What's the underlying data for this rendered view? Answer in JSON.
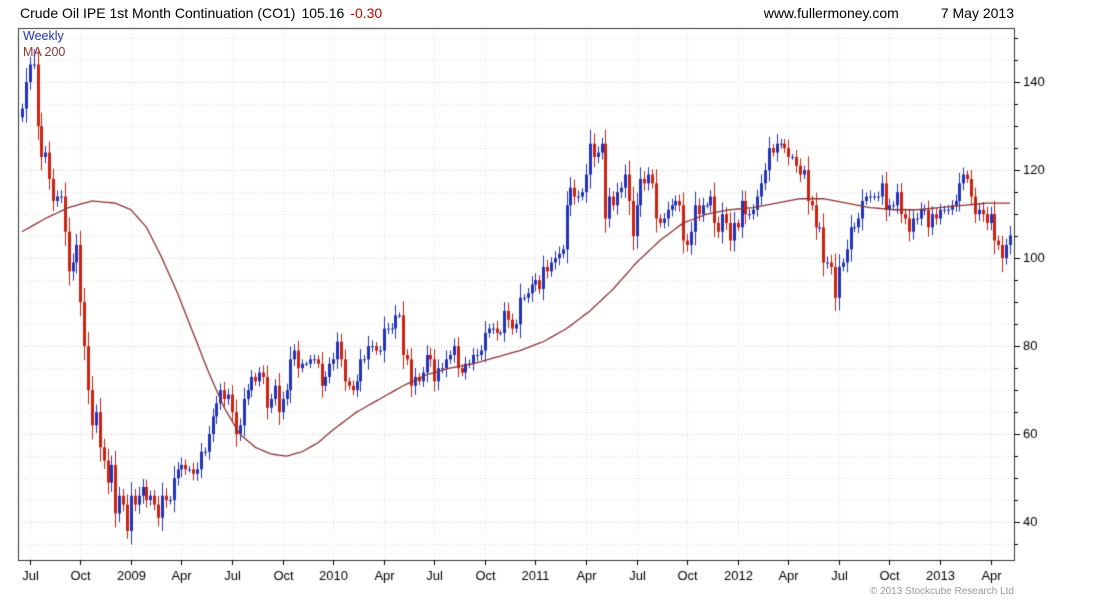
{
  "header": {
    "title": "Crude Oil IPE 1st Month Continuation (CO1)",
    "last_price": "105.16",
    "change": "-0.30",
    "website": "www.fullermoney.com",
    "date": "7 May 2013"
  },
  "legend": {
    "series_label": "Weekly",
    "ma_label": "MA 200"
  },
  "footer": {
    "copyright": "© 2013 Stockcube Research Ltd"
  },
  "colors": {
    "up": "#2233bb",
    "down": "#cc2211",
    "ma": "#8b3434",
    "grid_minor": "#e2e2e2",
    "grid_major": "#cfcfcf",
    "border": "#333333",
    "axis_text": "#000000"
  },
  "chart_data": {
    "type": "candlestick",
    "title": "Crude Oil IPE 1st Month Continuation (CO1)",
    "frequency_label": "Weekly",
    "ma_label": "MA 200",
    "last_close": 105.16,
    "change": -0.3,
    "y_ticks": [
      40,
      60,
      80,
      100,
      120,
      140
    ],
    "y_minor_step": 5,
    "y_range": [
      31.4,
      152.3
    ],
    "first_open": 132,
    "x_ticks": [
      {
        "pos": 2,
        "label": "Jul"
      },
      {
        "pos": 15,
        "label": "Oct"
      },
      {
        "pos": 28,
        "label": "2009"
      },
      {
        "pos": 41,
        "label": "Apr"
      },
      {
        "pos": 54,
        "label": "Jul"
      },
      {
        "pos": 67,
        "label": "Oct"
      },
      {
        "pos": 80,
        "label": "2010"
      },
      {
        "pos": 93,
        "label": "Apr"
      },
      {
        "pos": 106,
        "label": "Jul"
      },
      {
        "pos": 119,
        "label": "Oct"
      },
      {
        "pos": 132,
        "label": "2011"
      },
      {
        "pos": 145,
        "label": "Apr"
      },
      {
        "pos": 158,
        "label": "Jul"
      },
      {
        "pos": 171,
        "label": "Oct"
      },
      {
        "pos": 184,
        "label": "2012"
      },
      {
        "pos": 197,
        "label": "Apr"
      },
      {
        "pos": 210,
        "label": "Jul"
      },
      {
        "pos": 223,
        "label": "Oct"
      },
      {
        "pos": 236,
        "label": "2013"
      },
      {
        "pos": 249,
        "label": "Apr"
      }
    ],
    "weekly_close": [
      134,
      140,
      144,
      144,
      130,
      123,
      124,
      118,
      113,
      114,
      114,
      106,
      97,
      99,
      103,
      90,
      80,
      70,
      62,
      65,
      57,
      54,
      49,
      53,
      42,
      46,
      44,
      38,
      46,
      44,
      46,
      48,
      45,
      46,
      44,
      41,
      46,
      45,
      45,
      50,
      52,
      53,
      52,
      52,
      51,
      52,
      56,
      56,
      60,
      64,
      67,
      70,
      68,
      69,
      65,
      60,
      62,
      68,
      70,
      73,
      72,
      74,
      73,
      66,
      68,
      71,
      65,
      68,
      70,
      77,
      79,
      75,
      76,
      76,
      77,
      77,
      76,
      71,
      73,
      76,
      77,
      81,
      77,
      72,
      71,
      70,
      72,
      77,
      77,
      80,
      80,
      79,
      79,
      84,
      84,
      84,
      87,
      87,
      78,
      77,
      71,
      73,
      72,
      74,
      78,
      77,
      72,
      75,
      75,
      77,
      78,
      80,
      75,
      74,
      76,
      76,
      78,
      78,
      79,
      83,
      84,
      84,
      83,
      83,
      88,
      86,
      84,
      85,
      91,
      91,
      92,
      94,
      95,
      93,
      98,
      97,
      99,
      100,
      101,
      102,
      112,
      116,
      114,
      114,
      115,
      119,
      126,
      123,
      124,
      126,
      109,
      114,
      112,
      115,
      116,
      119,
      113,
      105,
      112,
      118,
      117,
      119,
      117,
      109,
      108,
      109,
      111,
      112,
      113,
      112,
      104,
      103,
      106,
      112,
      110,
      112,
      112,
      114,
      108,
      106,
      110,
      108,
      104,
      108,
      107,
      113,
      110,
      110,
      111,
      114,
      117,
      120,
      125,
      124,
      126,
      126,
      125,
      123,
      123,
      121,
      119,
      120,
      113,
      112,
      107,
      107,
      99,
      99,
      98,
      91,
      98,
      99,
      102,
      107,
      107,
      109,
      113,
      114,
      114,
      114,
      114,
      117,
      111,
      112,
      112,
      115,
      110,
      109,
      106,
      109,
      109,
      111,
      111,
      107,
      110,
      109,
      111,
      111,
      111,
      112,
      113,
      117,
      119,
      118,
      114,
      110,
      111,
      110,
      108,
      110,
      104,
      103,
      100,
      103,
      105.16
    ],
    "wick_overrides": {
      "3": {
        "h": 147.5
      },
      "27": {
        "l": 36.2
      },
      "149": {
        "h": 127.3
      },
      "194": {
        "h": 128.2
      },
      "252": {
        "l": 96.8
      }
    },
    "ma200": {
      "anchors": [
        [
          0,
          106
        ],
        [
          6,
          109
        ],
        [
          12,
          111.5
        ],
        [
          18,
          113
        ],
        [
          24,
          112.5
        ],
        [
          28,
          111
        ],
        [
          32,
          107
        ],
        [
          36,
          100
        ],
        [
          40,
          92
        ],
        [
          44,
          83
        ],
        [
          48,
          74
        ],
        [
          52,
          66
        ],
        [
          56,
          60
        ],
        [
          60,
          57
        ],
        [
          64,
          55.5
        ],
        [
          68,
          55
        ],
        [
          72,
          56
        ],
        [
          76,
          58
        ],
        [
          80,
          61
        ],
        [
          86,
          65
        ],
        [
          92,
          68
        ],
        [
          98,
          71
        ],
        [
          104,
          73.5
        ],
        [
          110,
          75
        ],
        [
          116,
          76
        ],
        [
          122,
          77.5
        ],
        [
          128,
          79
        ],
        [
          134,
          81
        ],
        [
          140,
          84
        ],
        [
          146,
          88
        ],
        [
          152,
          93
        ],
        [
          158,
          99
        ],
        [
          164,
          104
        ],
        [
          170,
          108
        ],
        [
          176,
          110
        ],
        [
          182,
          111
        ],
        [
          188,
          111.5
        ],
        [
          194,
          112.5
        ],
        [
          200,
          113.5
        ],
        [
          206,
          113.5
        ],
        [
          212,
          112.5
        ],
        [
          218,
          111.5
        ],
        [
          224,
          111
        ],
        [
          230,
          111
        ],
        [
          236,
          111.5
        ],
        [
          242,
          112
        ],
        [
          248,
          112.5
        ],
        [
          254,
          112.5
        ]
      ]
    }
  }
}
